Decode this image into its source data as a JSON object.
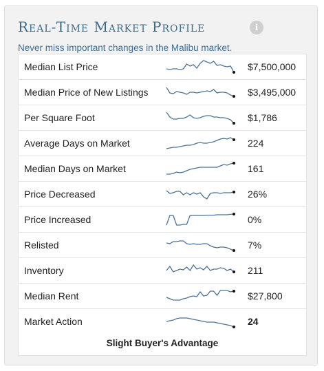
{
  "header": {
    "title": "Real-Time Market Profile",
    "info_label": "i",
    "subtitle": "Never miss important changes in the Malibu market."
  },
  "colors": {
    "title": "#3e6a8a",
    "subtitle": "#3a6d99",
    "sparkline": "#4a7296",
    "sparkline_end": "#111111"
  },
  "metrics": [
    {
      "label": "Median List Price",
      "value": "$7,500,000",
      "trend": [
        0.35,
        0.3,
        0.35,
        0.35,
        0.3,
        0.35,
        0.7,
        0.55,
        0.65,
        0.4,
        0.75,
        0.95,
        0.85,
        0.75,
        0.9,
        0.6,
        0.65,
        0.55,
        0.5,
        0.55,
        0.1
      ]
    },
    {
      "label": "Median Price of New Listings",
      "value": "$3,495,000",
      "trend": [
        0.85,
        0.45,
        0.4,
        0.55,
        0.5,
        0.45,
        0.35,
        0.5,
        0.5,
        0.45,
        0.5,
        0.55,
        0.6,
        0.55,
        0.7,
        0.45,
        0.5,
        0.5,
        0.45,
        0.3,
        0.2
      ]
    },
    {
      "label": "Per Square Foot",
      "value": "$1,786",
      "trend": [
        0.9,
        0.55,
        0.4,
        0.4,
        0.45,
        0.45,
        0.55,
        0.7,
        0.5,
        0.45,
        0.5,
        0.6,
        0.65,
        0.65,
        0.55,
        0.55,
        0.5,
        0.5,
        0.45,
        0.35,
        0.1
      ]
    },
    {
      "label": "Average Days on Market",
      "value": "224",
      "trend": [
        0.1,
        0.15,
        0.2,
        0.2,
        0.25,
        0.3,
        0.35,
        0.35,
        0.4,
        0.5,
        0.55,
        0.5,
        0.5,
        0.55,
        0.6,
        0.7,
        0.8,
        0.85,
        0.8,
        0.9,
        0.75
      ]
    },
    {
      "label": "Median Days on Market",
      "value": "161",
      "trend": [
        0.1,
        0.1,
        0.15,
        0.25,
        0.2,
        0.25,
        0.35,
        0.45,
        0.5,
        0.55,
        0.6,
        0.6,
        0.6,
        0.6,
        0.6,
        0.6,
        0.7,
        0.8,
        0.75,
        0.85,
        0.9
      ]
    },
    {
      "label": "Price Decreased",
      "value": "26%",
      "trend": [
        0.75,
        0.55,
        0.6,
        0.7,
        0.7,
        0.45,
        0.6,
        0.45,
        0.6,
        0.5,
        0.6,
        0.3,
        0.15,
        0.55,
        0.6,
        0.6,
        0.55,
        0.6,
        0.6,
        0.6,
        0.65
      ]
    },
    {
      "label": "Price Increased",
      "value": "0%",
      "trend": [
        0.1,
        0.8,
        0.8,
        0.1,
        0.1,
        0.15,
        0.15,
        0.8,
        0.8,
        0.8,
        0.8,
        0.8,
        0.82,
        0.82,
        0.82,
        0.85,
        0.85,
        0.85,
        0.85,
        0.88,
        0.9
      ]
    },
    {
      "label": "Relisted",
      "value": "7%",
      "trend": [
        0.65,
        0.6,
        0.75,
        0.75,
        0.8,
        0.8,
        0.6,
        0.55,
        0.6,
        0.55,
        0.55,
        0.6,
        0.6,
        0.45,
        0.35,
        0.3,
        0.35,
        0.35,
        0.3,
        0.2,
        0.1
      ]
    },
    {
      "label": "Inventory",
      "value": "211",
      "trend": [
        0.5,
        0.8,
        0.4,
        0.5,
        0.6,
        0.55,
        0.75,
        0.5,
        0.9,
        0.6,
        0.7,
        0.55,
        0.8,
        0.5,
        0.6,
        0.6,
        0.7,
        0.65,
        0.5,
        0.6,
        0.4
      ]
    },
    {
      "label": "Median Rent",
      "value": "$27,800",
      "trend": [
        0.4,
        0.3,
        0.2,
        0.2,
        0.2,
        0.3,
        0.35,
        0.45,
        0.5,
        0.45,
        0.8,
        0.5,
        0.55,
        0.85,
        0.85,
        0.55,
        0.9,
        0.9,
        0.9,
        0.8,
        0.85
      ]
    },
    {
      "label": "Market Action",
      "value": "24",
      "trend": [
        0.5,
        0.55,
        0.6,
        0.7,
        0.75,
        0.75,
        0.75,
        0.7,
        0.65,
        0.6,
        0.55,
        0.5,
        0.45,
        0.45,
        0.45,
        0.4,
        0.35,
        0.3,
        0.25,
        0.2,
        0.1
      ]
    }
  ],
  "market_action_summary": "Slight Buyer's Advantage"
}
